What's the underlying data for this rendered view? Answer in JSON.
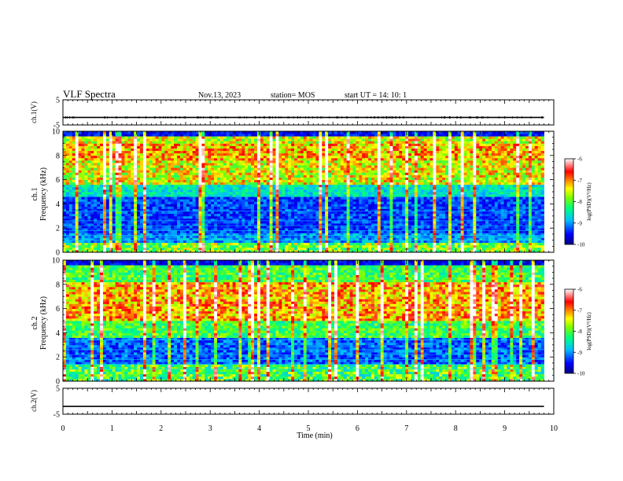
{
  "header": {
    "title": "VLF Spectra",
    "date": "Nov.13, 2023",
    "station": "station= MOS",
    "start": "start  UT =   14: 10: 1"
  },
  "chart_data": [
    {
      "type": "line",
      "name": "ch1-waveform",
      "ylabel": "ch.1(V)",
      "ylim": [
        -5,
        5
      ],
      "yticks": [
        "5",
        "-5"
      ],
      "xlim": [
        0,
        10
      ],
      "level": -2
    },
    {
      "type": "heatmap",
      "name": "ch1-spectrogram",
      "ylabel_top": "ch.1",
      "ylabel": "Frequency (kHz)",
      "ylim": [
        0,
        10
      ],
      "yticks": [
        "0",
        "2",
        "4",
        "6",
        "8",
        "10"
      ],
      "xlim": [
        0,
        10
      ],
      "data_end_min": 9.8,
      "colorbar": {
        "label": "log(PSD)(V²/Hz)",
        "range": [
          -10,
          -6
        ],
        "ticks": [
          "-6",
          "-7",
          "-8",
          "-9",
          "-10"
        ]
      }
    },
    {
      "type": "heatmap",
      "name": "ch2-spectrogram",
      "ylabel_top": "ch.2",
      "ylabel": "Frequency (kHz)",
      "ylim": [
        0,
        10
      ],
      "yticks": [
        "0",
        "2",
        "4",
        "6",
        "8",
        "10"
      ],
      "xlim": [
        0,
        10
      ],
      "data_end_min": 9.8,
      "colorbar": {
        "label": "log(PSD)(V²/Hz)",
        "range": [
          -10,
          -6
        ],
        "ticks": [
          "-6",
          "-7",
          "-8",
          "-9",
          "-10"
        ]
      }
    },
    {
      "type": "line",
      "name": "ch2-waveform",
      "ylabel": "ch.2(V)",
      "ylim": [
        -5,
        5
      ],
      "yticks": [
        "5",
        "-5"
      ],
      "xlim": [
        0,
        10
      ],
      "level": -2
    }
  ],
  "xaxis": {
    "label": "Time (min)",
    "ticks": [
      "0",
      "1",
      "2",
      "3",
      "4",
      "5",
      "6",
      "7",
      "8",
      "9",
      "10"
    ]
  },
  "colors": {
    "scale": [
      "#000080",
      "#0000ff",
      "#00a0ff",
      "#00ffff",
      "#00ff80",
      "#80ff00",
      "#ffff00",
      "#ff8000",
      "#ff0000",
      "#ffffff"
    ]
  }
}
